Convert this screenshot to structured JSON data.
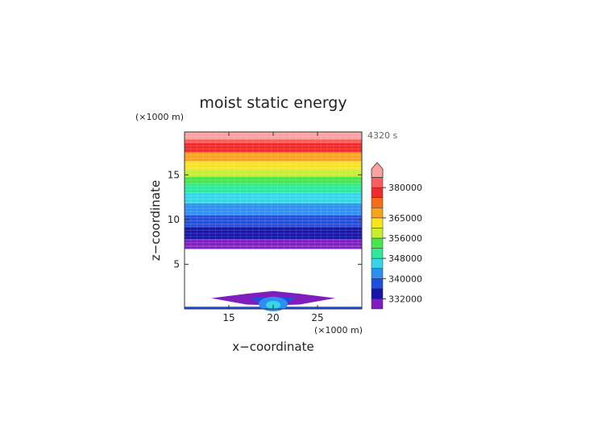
{
  "chart_data": {
    "type": "heatmap",
    "title": "moist static energy",
    "time_label": "4320 s",
    "xlabel": "x−coordinate",
    "ylabel": "z−coordinate",
    "x_unit": "(×1000 m)",
    "y_unit": "(×1000 m)",
    "xlim": [
      10,
      30
    ],
    "ylim": [
      0,
      19.8
    ],
    "x_ticks": [
      15,
      20,
      25
    ],
    "y_ticks": [
      5,
      10,
      15
    ],
    "colorbar": {
      "levels": [
        328000,
        332000,
        336000,
        340000,
        344000,
        348000,
        352000,
        356000,
        360000,
        365000,
        370000,
        375000,
        380000,
        385000
      ],
      "colors": [
        "#7f1dbf",
        "#1515a8",
        "#1f4fe0",
        "#2f8ff0",
        "#36d6e6",
        "#2fe89c",
        "#48e64a",
        "#c8ee2e",
        "#f7e51c",
        "#f8a319",
        "#f56d17",
        "#ee2a2a",
        "#fb5c5c",
        "#fba1a1"
      ],
      "labeled_values": [
        332000,
        340000,
        348000,
        356000,
        365000,
        380000
      ]
    },
    "bands": [
      {
        "z0": 6.7,
        "z1": 7.0,
        "value": 330000
      },
      {
        "z0": 7.0,
        "z1": 7.8,
        "value": 331000
      },
      {
        "z0": 7.8,
        "z1": 9.2,
        "value": 334000
      },
      {
        "z0": 9.2,
        "z1": 10.5,
        "value": 338000
      },
      {
        "z0": 10.5,
        "z1": 11.8,
        "value": 342000
      },
      {
        "z0": 11.8,
        "z1": 13.0,
        "value": 346000
      },
      {
        "z0": 13.0,
        "z1": 14.0,
        "value": 350000
      },
      {
        "z0": 14.0,
        "z1": 14.8,
        "value": 354000
      },
      {
        "z0": 14.8,
        "z1": 15.6,
        "value": 358000
      },
      {
        "z0": 15.6,
        "z1": 16.5,
        "value": 362000
      },
      {
        "z0": 16.5,
        "z1": 17.5,
        "value": 368000
      },
      {
        "z0": 17.5,
        "z1": 18.6,
        "value": 378000
      },
      {
        "z0": 18.6,
        "z1": 19.0,
        "value": 381000
      },
      {
        "z0": 19.0,
        "z1": 19.8,
        "value": 387000
      }
    ],
    "surface_band": {
      "z0": 0.0,
      "z1": 0.25,
      "value": 338000
    },
    "cloud": {
      "x": [
        13.0,
        17.0,
        20.0,
        23.0,
        27.0,
        23.0,
        20.0,
        17.0
      ],
      "z": [
        1.2,
        1.7,
        2.0,
        1.7,
        1.2,
        0.5,
        0.4,
        0.5
      ],
      "value": 331000,
      "core": {
        "x_center": 20,
        "value": 346000
      }
    }
  }
}
